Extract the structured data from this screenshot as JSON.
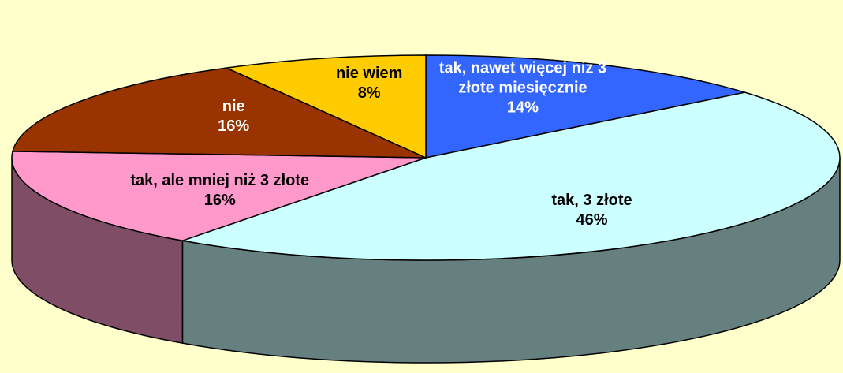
{
  "chart_data": {
    "type": "pie3d",
    "categories": [
      "tak, nawet więcej niż 3 złote miesięcznie",
      "tak, 3 złote",
      "tak, ale mniej niż 3 złote",
      "nie",
      "nie wiem"
    ],
    "values": [
      14,
      46,
      16,
      16,
      8
    ],
    "value_labels": [
      "14%",
      "46%",
      "16%",
      "16%",
      "8%"
    ],
    "colors": [
      "#3366ff",
      "#ccffff",
      "#ff99cc",
      "#993300",
      "#ffcc00"
    ]
  }
}
